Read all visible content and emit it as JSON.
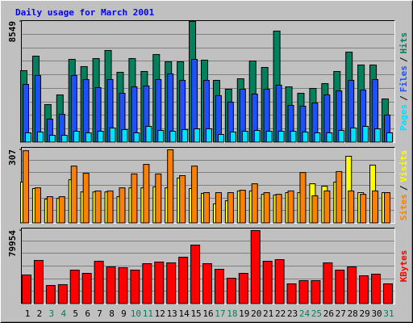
{
  "chart_data": {
    "type": "bar",
    "title": "Daily usage for March 2001",
    "title_color": "#0000ff",
    "legend_separator": "/",
    "categories": [
      "1",
      "2",
      "3",
      "4",
      "5",
      "6",
      "7",
      "8",
      "9",
      "10",
      "11",
      "12",
      "13",
      "14",
      "15",
      "16",
      "17",
      "18",
      "19",
      "20",
      "21",
      "22",
      "23",
      "24",
      "25",
      "26",
      "27",
      "28",
      "29",
      "30",
      "31"
    ],
    "category_colors": [
      "#000000",
      "#000000",
      "#00805c",
      "#00805c",
      "#000000",
      "#000000",
      "#000000",
      "#000000",
      "#000000",
      "#00805c",
      "#00805c",
      "#000000",
      "#000000",
      "#000000",
      "#000000",
      "#000000",
      "#00805c",
      "#00805c",
      "#000000",
      "#000000",
      "#000000",
      "#000000",
      "#000000",
      "#00805c",
      "#00805c",
      "#000000",
      "#000000",
      "#000000",
      "#000000",
      "#000000",
      "#00805c"
    ],
    "panels": [
      {
        "ylim": [
          0,
          8549
        ],
        "yticks": [
          8549
        ],
        "series": [
          {
            "name": "Hits",
            "color": "#00805c",
            "values": [
              5073,
              6099,
              2679,
              3363,
              5871,
              5358,
              5928,
              6498,
              4959,
              5928,
              5016,
              6213,
              5700,
              5700,
              8549,
              5814,
              4389,
              3762,
              4503,
              5757,
              5301,
              7866,
              3933,
              3477,
              3819,
              4161,
              5016,
              6384,
              5472,
              5472,
              3078
            ]
          },
          {
            "name": "Files",
            "color": "#1e50ff",
            "values": [
              4104,
              4731,
              1653,
              1995,
              4731,
              4446,
              3876,
              4446,
              3477,
              3933,
              3990,
              4446,
              4845,
              4389,
              5871,
              4389,
              3306,
              2850,
              3762,
              3420,
              3762,
              4047,
              2622,
              2565,
              2793,
              3363,
              3648,
              4389,
              3705,
              4446,
              1938
            ]
          },
          {
            "name": "Pages",
            "color": "#00e0ff",
            "values": [
              684,
              741,
              513,
              513,
              798,
              684,
              798,
              1026,
              912,
              684,
              1140,
              855,
              798,
              912,
              969,
              969,
              570,
              741,
              798,
              855,
              798,
              798,
              798,
              741,
              684,
              684,
              855,
              1026,
              1140,
              969,
              684
            ]
          }
        ]
      },
      {
        "ylim": [
          0,
          307
        ],
        "yticks": [
          307
        ],
        "series": [
          {
            "name": "Visits",
            "color": "#ffff00",
            "values": [
              172,
              145,
              101,
              104,
              182,
              131,
              131,
              131,
              111,
              148,
              148,
              152,
              148,
              189,
              145,
              125,
              81,
              94,
              135,
              135,
              121,
              118,
              128,
              128,
              165,
              155,
              172,
              280,
              128,
              243,
              128
            ]
          },
          {
            "name": "Sites",
            "color": "#ff8000",
            "values": [
              303,
              148,
              111,
              111,
              239,
              209,
              135,
              135,
              148,
              206,
              246,
              206,
              307,
              199,
              239,
              128,
              128,
              128,
              138,
              165,
              128,
              121,
              135,
              212,
              115,
              135,
              216,
              135,
              121,
              135,
              128
            ]
          }
        ]
      },
      {
        "ylim": [
          0,
          79954
        ],
        "yticks": [
          79954
        ],
        "series": [
          {
            "name": "KBytes",
            "color": "#ff0000",
            "values": [
              31630,
              47444,
              20208,
              21087,
              36902,
              33387,
              46566,
              40415,
              39537,
              36902,
              43931,
              45688,
              44810,
              50960,
              64140,
              43931,
              37781,
              28116,
              33387,
              79954,
              46566,
              48324,
              21966,
              25480,
              25480,
              44810,
              36902,
              40415,
              30752,
              32509,
              21966
            ]
          }
        ]
      }
    ]
  }
}
